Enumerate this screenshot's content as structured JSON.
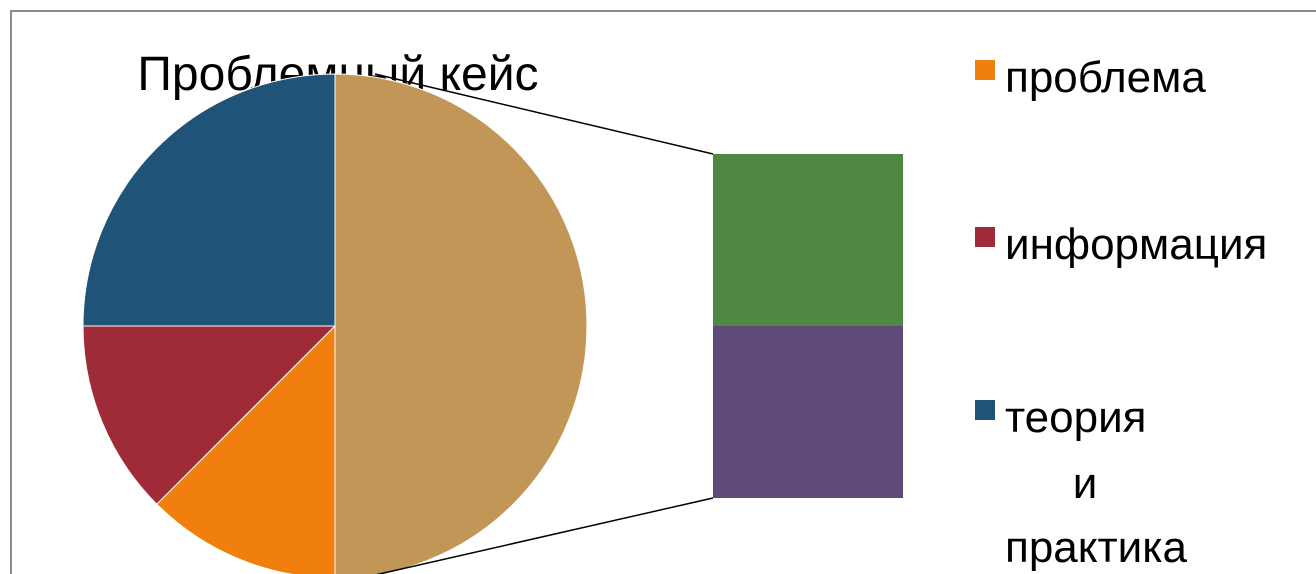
{
  "chart_data": {
    "type": "pie",
    "subtype": "bar-of-pie",
    "title": "Проблемный кейс",
    "slices": [
      {
        "label": "теория и практика",
        "value": 25,
        "color": "#1F5378"
      },
      {
        "label": "информация",
        "value": 12.5,
        "color": "#A02B38"
      },
      {
        "label": "проблема",
        "value": 12.5,
        "color": "#F07F0E"
      },
      {
        "label": "",
        "value": 50,
        "color": "#C29657",
        "exploded_to_bar": true
      }
    ],
    "secondary_bar": [
      {
        "value": 25,
        "color": "#4E8843"
      },
      {
        "value": 25,
        "color": "#5F4978"
      }
    ],
    "legend": {
      "position": "right",
      "items": [
        {
          "label": "проблема",
          "color": "#F07F0E"
        },
        {
          "label": "информация",
          "color": "#A02B38"
        },
        {
          "label_lines": [
            "теория",
            "и",
            "практика"
          ],
          "color": "#1F5378"
        }
      ]
    }
  }
}
